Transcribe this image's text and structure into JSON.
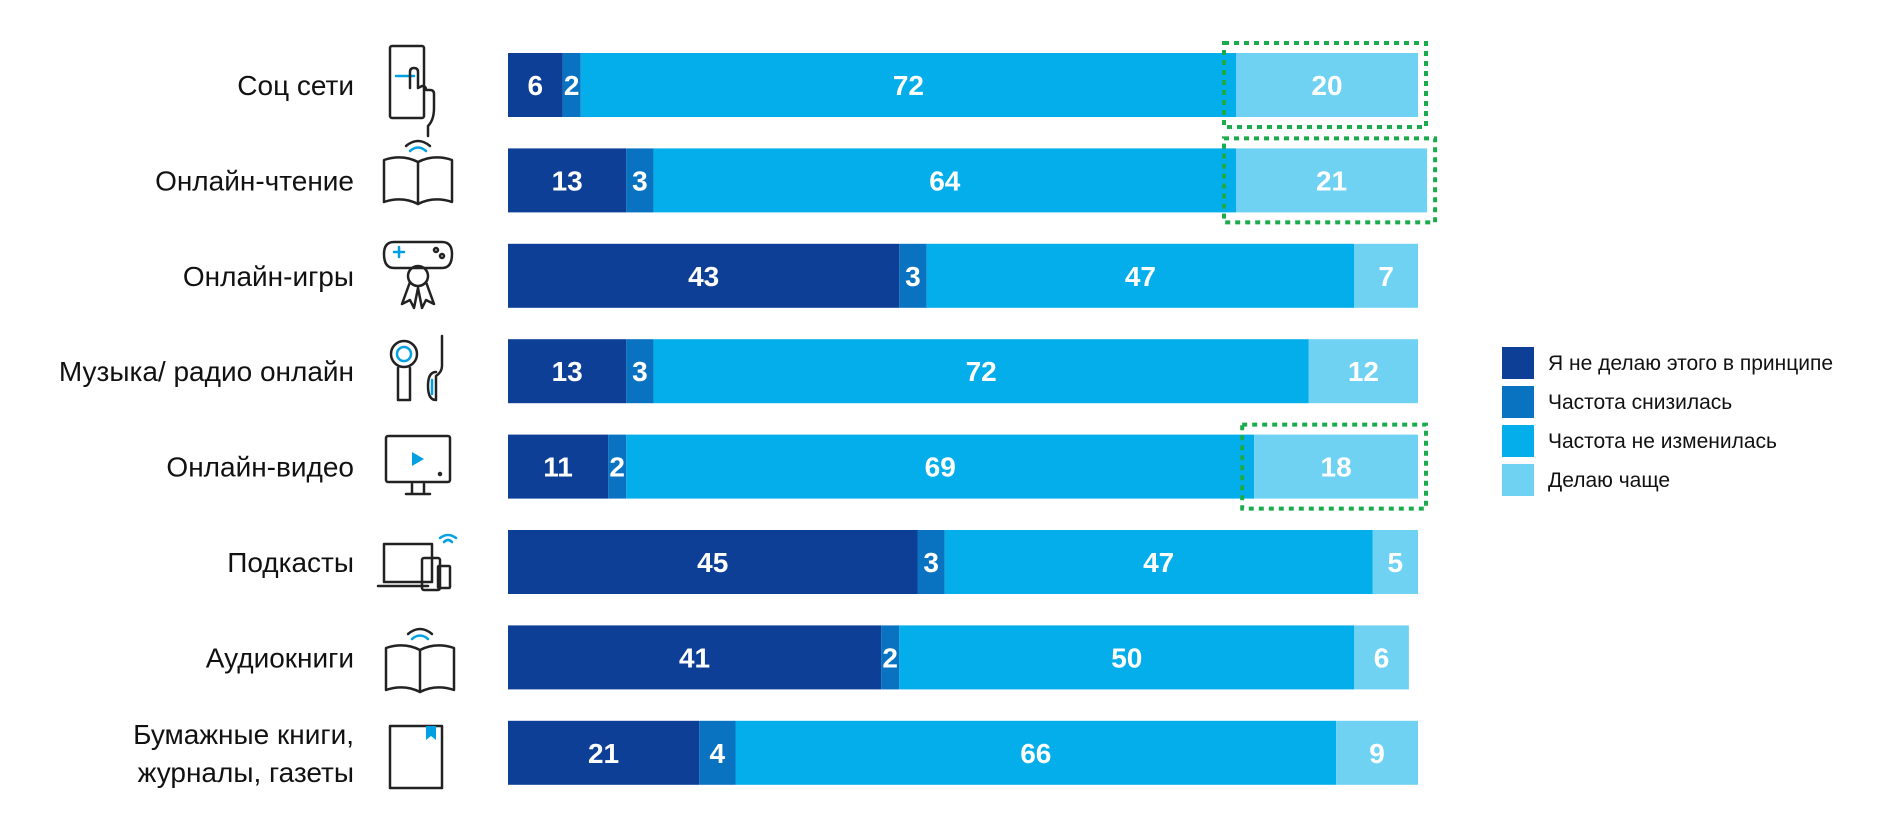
{
  "chart_data": {
    "type": "bar",
    "orientation": "horizontal",
    "stacked": true,
    "categories": [
      "Соц сети",
      "Онлайн-чтение",
      "Онлайн-игры",
      "Музыка/ радио онлайн",
      "Онлайн-видео",
      "Подкасты",
      "Аудиокниги",
      "Бумажные книги, журналы, газеты"
    ],
    "category_lines": [
      [
        "Соц сети"
      ],
      [
        "Онлайн-чтение"
      ],
      [
        "Онлайн-игры"
      ],
      [
        "Музыка/ радио онлайн"
      ],
      [
        "Онлайн-видео"
      ],
      [
        "Подкасты"
      ],
      [
        "Аудиокниги"
      ],
      [
        "Бумажные книги,",
        "журналы, газеты"
      ]
    ],
    "icons": [
      "phone-touch-icon",
      "open-book-wifi-icon",
      "gamepad-award-icon",
      "headphones-icon",
      "tv-play-icon",
      "devices-wifi-icon",
      "audiobook-wifi-icon",
      "paper-book-icon"
    ],
    "series": [
      {
        "name": "Я не делаю этого в принципе",
        "color": "#0d3f97",
        "values": [
          6,
          13,
          43,
          13,
          11,
          45,
          41,
          21
        ]
      },
      {
        "name": "Частота снизилась",
        "color": "#0a73c1",
        "values": [
          2,
          3,
          3,
          3,
          2,
          3,
          2,
          4
        ]
      },
      {
        "name": "Частота не изменилась",
        "color": "#04aeea",
        "values": [
          72,
          64,
          47,
          72,
          69,
          47,
          50,
          66
        ]
      },
      {
        "name": "Делаю чаще",
        "color": "#6fd2f3",
        "values": [
          20,
          21,
          7,
          12,
          18,
          5,
          6,
          9
        ]
      }
    ],
    "highlighted": [
      {
        "category": "Соц сети",
        "series": "Делаю чаще"
      },
      {
        "category": "Онлайн-чтение",
        "series": "Делаю чаще"
      },
      {
        "category": "Онлайн-видео",
        "series": "Делаю чаще"
      }
    ],
    "highlight_color": "#1aab4d",
    "xlim": [
      0,
      100
    ],
    "grid": false,
    "legend_position": "right"
  }
}
